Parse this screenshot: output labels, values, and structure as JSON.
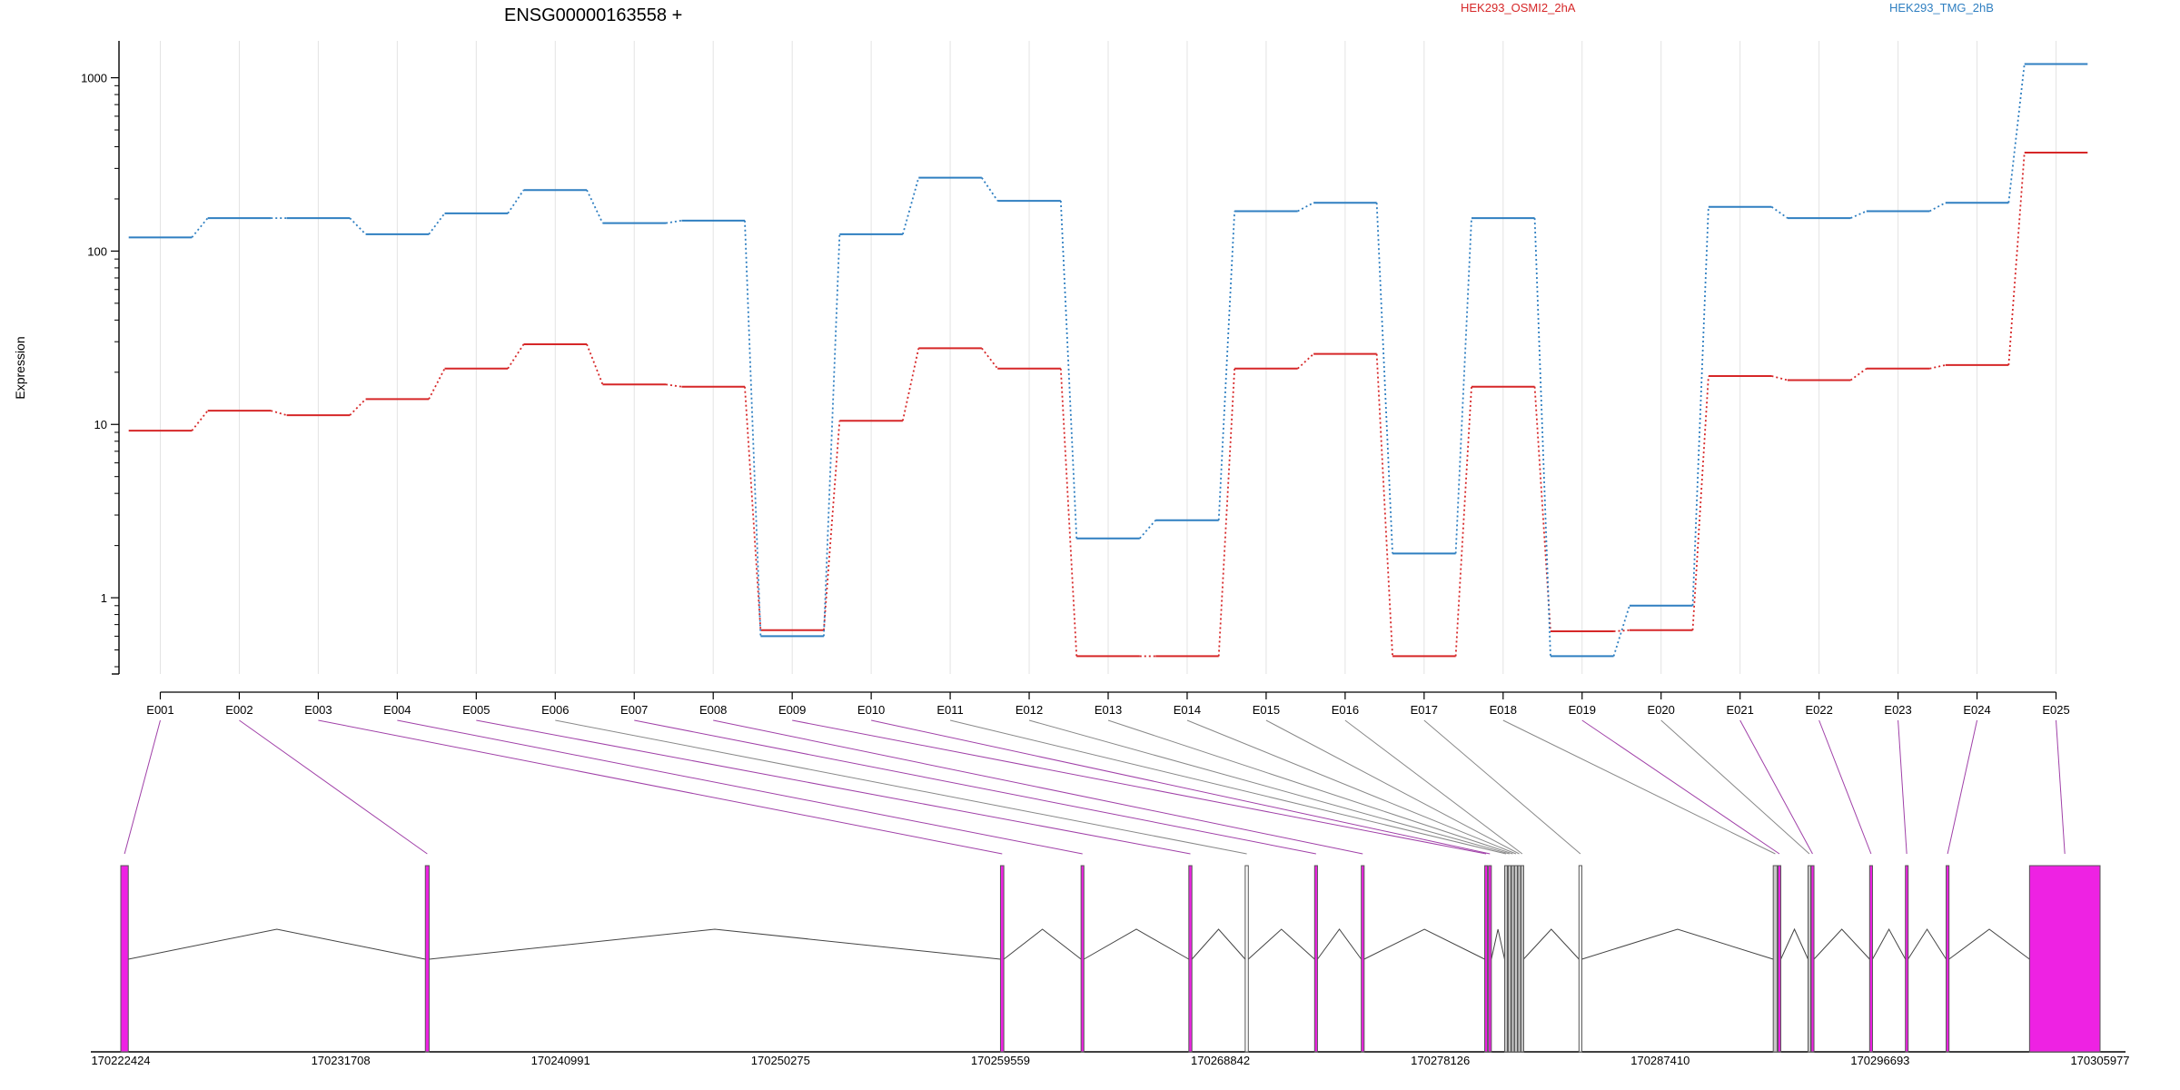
{
  "chart_data": {
    "type": "line",
    "title": "ENSG00000163558 +",
    "ylabel": "Expression",
    "xlabel": "",
    "y_scale": "log",
    "ylim": [
      0.4,
      1500
    ],
    "y_ticks": [
      1,
      10,
      100,
      1000
    ],
    "y_tick_labels": [
      "1",
      "10",
      "100",
      "1000"
    ],
    "grid": "vertical",
    "legend_position": "top-right",
    "categories": [
      "E001",
      "E002",
      "E003",
      "E004",
      "E005",
      "E006",
      "E007",
      "E008",
      "E009",
      "E010",
      "E011",
      "E012",
      "E013",
      "E014",
      "E015",
      "E016",
      "E017",
      "E018",
      "E019",
      "E020",
      "E021",
      "E022",
      "E023",
      "E024",
      "E025"
    ],
    "series": [
      {
        "name": "HEK293_OSMI2_2hA",
        "color": "#d62728",
        "values": [
          9.2,
          12,
          11.3,
          14,
          21,
          29,
          17,
          16.5,
          0.65,
          10.5,
          27.5,
          21,
          0.46,
          0.46,
          21,
          25.5,
          0.46,
          16.5,
          0.64,
          0.65,
          19,
          18,
          21,
          22,
          370
        ]
      },
      {
        "name": "HEK293_TMG_2hB",
        "color": "#2f7fc1",
        "values": [
          120,
          155,
          155,
          125,
          165,
          225,
          145,
          150,
          0.6,
          125,
          265,
          195,
          2.2,
          2.8,
          170,
          190,
          1.8,
          155,
          0.46,
          0.9,
          180,
          155,
          170,
          190,
          1200
        ]
      }
    ],
    "genomic_axis": {
      "range": [
        170222424,
        170305977
      ],
      "tick_labels": [
        "170222424",
        "170231708",
        "170240991",
        "170250275",
        "170259559",
        "170268842",
        "170278126",
        "170287410",
        "170296693",
        "170305977"
      ]
    },
    "exons": [
      {
        "id": "E001",
        "start": 170222424,
        "end": 170222740,
        "color": "#ee22e3"
      },
      {
        "id": "E002",
        "start": 170235280,
        "end": 170235440,
        "color": "#ee22e3"
      },
      {
        "id": "E003",
        "start": 170259559,
        "end": 170259700,
        "color": "#ee22e3"
      },
      {
        "id": "E004",
        "start": 170262960,
        "end": 170263080,
        "color": "#ee22e3"
      },
      {
        "id": "E005",
        "start": 170267510,
        "end": 170267640,
        "color": "#ee22e3"
      },
      {
        "id": "E006",
        "start": 170269890,
        "end": 170270020,
        "color": "#ffffff"
      },
      {
        "id": "E007",
        "start": 170272820,
        "end": 170272940,
        "color": "#ee22e3"
      },
      {
        "id": "E008",
        "start": 170274790,
        "end": 170274910,
        "color": "#ee22e3"
      },
      {
        "id": "E009",
        "start": 170280000,
        "end": 170280120,
        "color": "#ee22e3"
      },
      {
        "id": "E010",
        "start": 170280160,
        "end": 170280280,
        "color": "#ee22e3"
      },
      {
        "id": "E011",
        "start": 170280840,
        "end": 170280960,
        "color": "#c8c8c8"
      },
      {
        "id": "E012",
        "start": 170280990,
        "end": 170281100,
        "color": "#c8c8c8"
      },
      {
        "id": "E013",
        "start": 170281130,
        "end": 170281240,
        "color": "#c8c8c8"
      },
      {
        "id": "E014",
        "start": 170281260,
        "end": 170281380,
        "color": "#c8c8c8"
      },
      {
        "id": "E015",
        "start": 170281400,
        "end": 170281510,
        "color": "#c8c8c8"
      },
      {
        "id": "E016",
        "start": 170281530,
        "end": 170281640,
        "color": "#c8c8c8"
      },
      {
        "id": "E017",
        "start": 170283980,
        "end": 170284100,
        "color": "#ffffff"
      },
      {
        "id": "E018",
        "start": 170292180,
        "end": 170292350,
        "color": "#c8c8c8"
      },
      {
        "id": "E019",
        "start": 170292380,
        "end": 170292500,
        "color": "#ee22e3"
      },
      {
        "id": "E020",
        "start": 170293650,
        "end": 170293760,
        "color": "#c8c8c8"
      },
      {
        "id": "E021",
        "start": 170293780,
        "end": 170293900,
        "color": "#ee22e3"
      },
      {
        "id": "E022",
        "start": 170296250,
        "end": 170296370,
        "color": "#ee22e3"
      },
      {
        "id": "E023",
        "start": 170297760,
        "end": 170297870,
        "color": "#ee22e3"
      },
      {
        "id": "E024",
        "start": 170299480,
        "end": 170299600,
        "color": "#ee22e3"
      },
      {
        "id": "E025",
        "start": 170303000,
        "end": 170305977,
        "color": "#ee22e3"
      }
    ]
  }
}
